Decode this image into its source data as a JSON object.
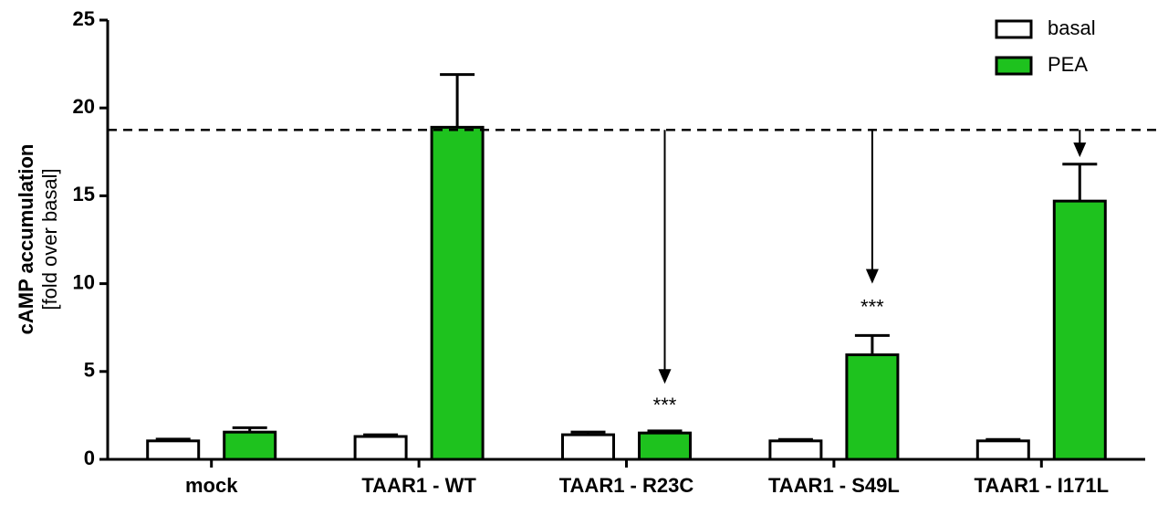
{
  "chart_data": {
    "type": "bar",
    "y_label": [
      "cAMP accumulation",
      "[fold over basal]"
    ],
    "categories": [
      "mock",
      "TAAR1 - WT",
      "TAAR1 - R23C",
      "TAAR1 - S49L",
      "TAAR1 - I171L"
    ],
    "series": [
      {
        "name": "basal",
        "color": "#ffffff",
        "values": [
          1.05,
          1.3,
          1.4,
          1.05,
          1.05
        ],
        "errors": [
          0.1,
          0.1,
          0.15,
          0.08,
          0.08
        ]
      },
      {
        "name": "PEA",
        "color": "#1ec21e",
        "values": [
          1.55,
          18.9,
          1.5,
          5.95,
          14.7
        ],
        "errors": [
          0.25,
          3.0,
          0.12,
          1.1,
          2.1
        ]
      }
    ],
    "ylim": [
      0,
      25
    ],
    "yticks": [
      0,
      5,
      10,
      15,
      20,
      25
    ],
    "reference_line": 18.75,
    "annotations": [
      {
        "category": "TAAR1 - R23C",
        "text": "***",
        "y": 3.0,
        "arrow_to": 4.3
      },
      {
        "category": "TAAR1 - S49L",
        "text": "***",
        "y": 8.6,
        "arrow_to": 10.0
      },
      {
        "category": "TAAR1 - I171L",
        "arrow_to": 17.2
      }
    ],
    "legend": "top-right"
  }
}
